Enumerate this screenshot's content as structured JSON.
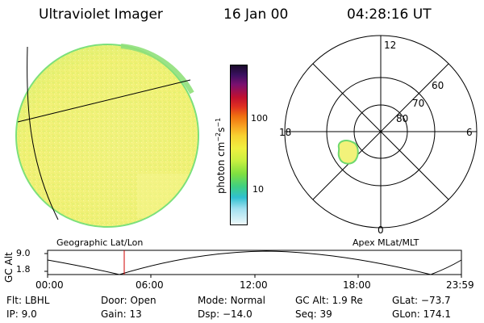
{
  "header": {
    "instrument": "Ultraviolet Imager",
    "date": "16 Jan 00",
    "time": "04:28:16 UT"
  },
  "colorbar": {
    "unit_label": "photon cm",
    "unit_exp1": "−2",
    "unit_s": "s",
    "unit_exp2": "−1",
    "ticks": [
      "100",
      "10"
    ]
  },
  "polar": {
    "mlt_labels": {
      "top": "12",
      "left": "18",
      "right": "6",
      "bottom": "0"
    },
    "lat_labels": [
      "60",
      "70",
      "80"
    ]
  },
  "panel_labels": {
    "left": "Geographic Lat/Lon",
    "right": "Apex MLat/MLT"
  },
  "altitude": {
    "label": "GC Alt",
    "ticks": [
      "9.0",
      "1.8"
    ],
    "time_ticks": [
      "00:00",
      "06:00",
      "12:00",
      "18:00",
      "23:59"
    ]
  },
  "meta": {
    "row1": [
      {
        "key": "Flt:",
        "value": "LBHL"
      },
      {
        "key": "Door:",
        "value": "Open"
      },
      {
        "key": "Mode:",
        "value": "Normal"
      },
      {
        "key": "GC Alt:",
        "value": "1.9 Re"
      },
      {
        "key": "GLat:",
        "value": "−73.7"
      }
    ],
    "row2": [
      {
        "key": "IP:",
        "value": "9.0"
      },
      {
        "key": "Gain:",
        "value": "13"
      },
      {
        "key": "Dsp:",
        "value": "−14.0"
      },
      {
        "key": "Seq:",
        "value": "39"
      },
      {
        "key": "GLon:",
        "value": "174.1"
      }
    ]
  },
  "colors": {
    "disk": "#f2f27a",
    "disk_edge": "#7be07b",
    "limb": "#5fd35f"
  }
}
